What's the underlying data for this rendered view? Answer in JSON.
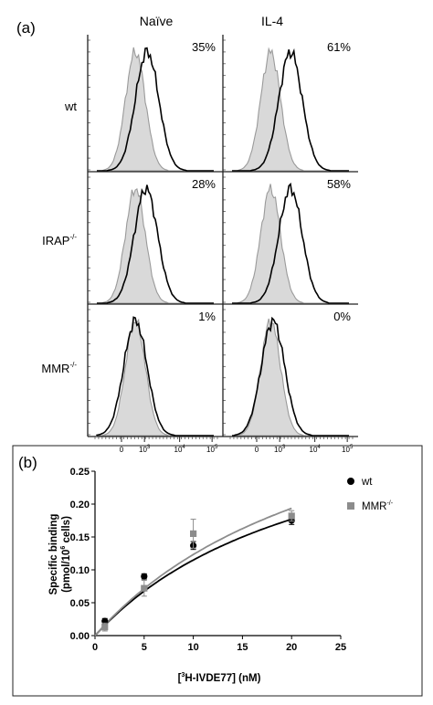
{
  "panel_a": {
    "label": "(a)",
    "col_headers": [
      "Naïve",
      "IL-4"
    ],
    "rows": [
      {
        "base": "wt",
        "sup": "",
        "pct": [
          "35%",
          "61%"
        ]
      },
      {
        "base": "IRAP",
        "sup": "-/-",
        "pct": [
          "28%",
          "58%"
        ]
      },
      {
        "base": "MMR",
        "sup": "-/-",
        "pct": [
          "1%",
          "0%"
        ]
      }
    ],
    "x_ticks": [
      {
        "base": "0",
        "sup": ""
      },
      {
        "base": "10",
        "sup": "3"
      },
      {
        "base": "10",
        "sup": "4"
      },
      {
        "base": "10",
        "sup": "5"
      }
    ],
    "colors": {
      "isotype_fill": "#d9d9d9",
      "isotype_line": "#9a9a9a",
      "stain_line": "#000000"
    }
  },
  "panel_b": {
    "label": "(b)"
  },
  "chart_data": {
    "type": "scatter",
    "xlabel_parts": [
      "[",
      "3",
      "H-IVDE77] (nM)"
    ],
    "ylabel_line1": "Specific binding",
    "ylabel_line2_parts": [
      "(pmol/10",
      "6",
      " cells)"
    ],
    "xlim": [
      0,
      25
    ],
    "ylim": [
      0,
      0.25
    ],
    "x_ticks": [
      "0",
      "5",
      "10",
      "15",
      "20",
      "25"
    ],
    "y_ticks": [
      "0.00",
      "0.05",
      "0.10",
      "0.15",
      "0.20",
      "0.25"
    ],
    "series": [
      {
        "name": "wt",
        "name_sup": "",
        "marker": "circle",
        "color": "#000000",
        "x": [
          1,
          5,
          10,
          20
        ],
        "y": [
          0.022,
          0.09,
          0.137,
          0.175
        ],
        "err": [
          0.004,
          0.004,
          0.006,
          0.006
        ],
        "fit": {
          "bmax": 0.385,
          "kd": 23.5
        }
      },
      {
        "name": "MMR",
        "name_sup": "-/-",
        "marker": "square",
        "color": "#8c8c8c",
        "x": [
          1,
          5,
          10,
          20
        ],
        "y": [
          0.013,
          0.072,
          0.155,
          0.182
        ],
        "err": [
          0.006,
          0.012,
          0.022,
          0.008
        ],
        "fit": {
          "bmax": 0.45,
          "kd": 26.5
        }
      }
    ],
    "legend_position": "top-right",
    "grid": false
  }
}
